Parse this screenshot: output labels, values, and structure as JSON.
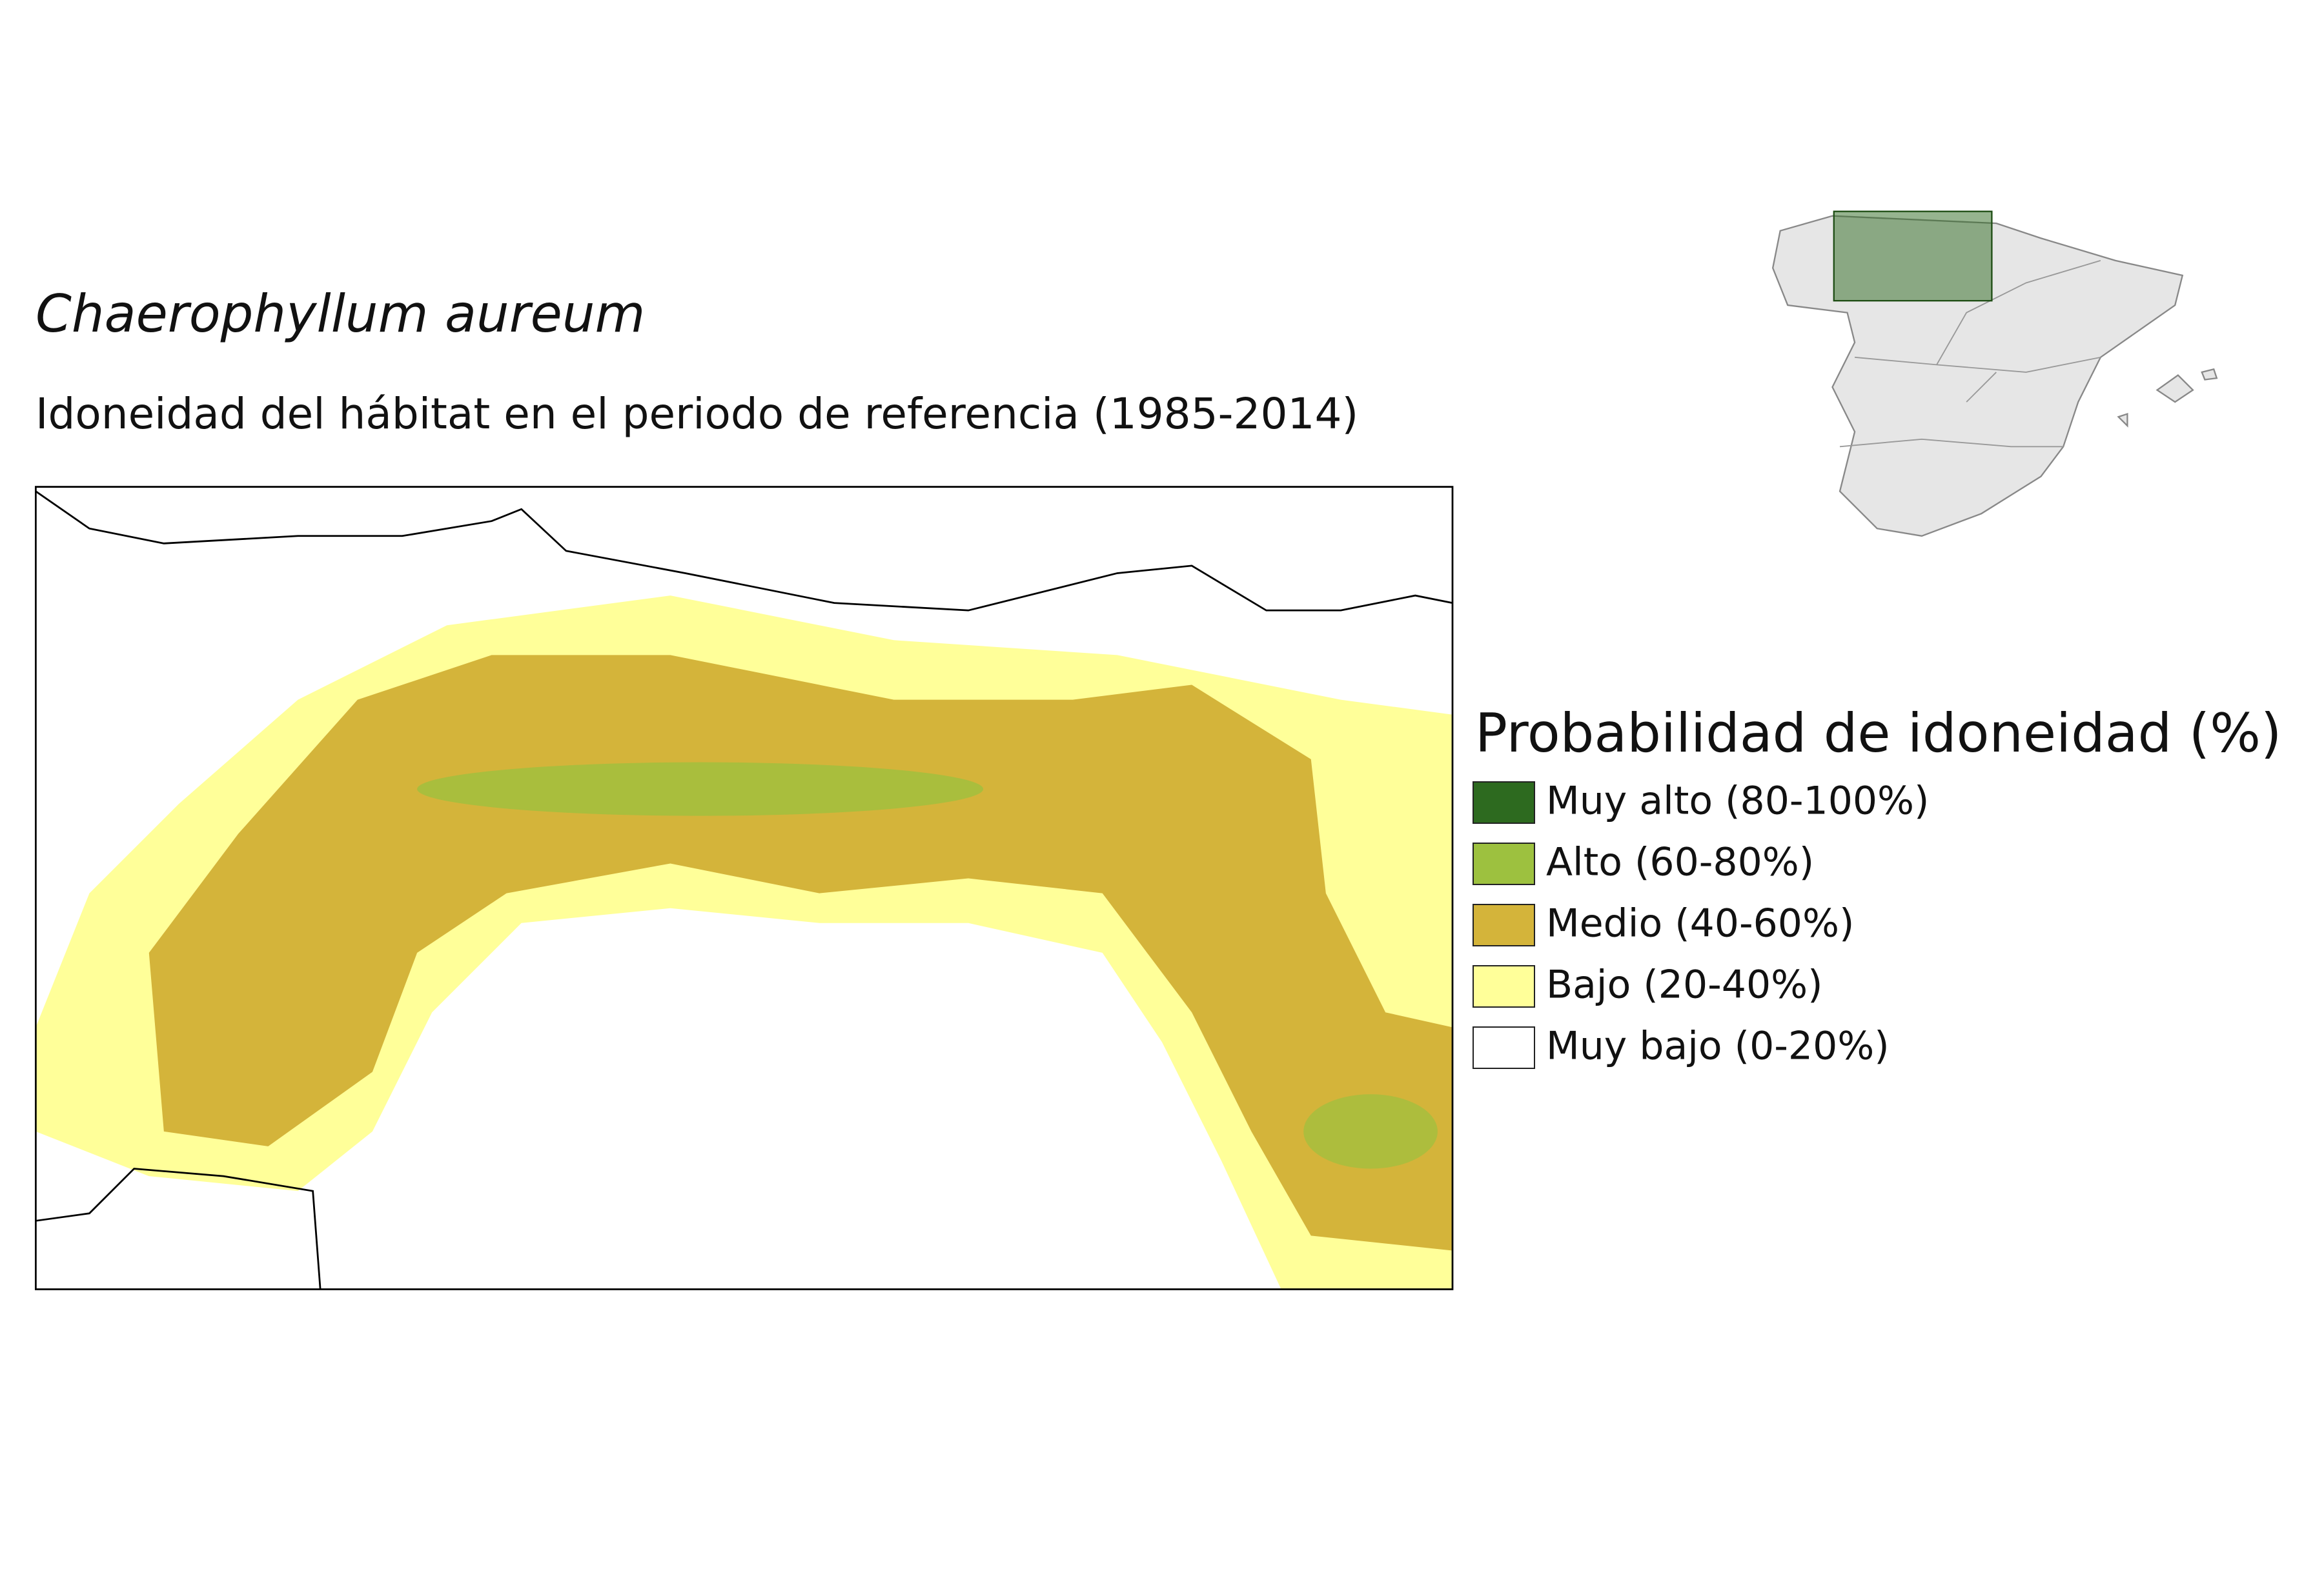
{
  "title": "Chaerophyllum aureum",
  "subtitle": "Idoneidad del hábitat en el periodo de referencia (1985-2014)",
  "legend": {
    "title": "Probabilidad de idoneidad (%)",
    "items": [
      {
        "label": "Muy alto (80-100%)",
        "color": "#2d6a1f"
      },
      {
        "label": "Alto (60-80%)",
        "color": "#9dc13f"
      },
      {
        "label": "Medio (40-60%)",
        "color": "#d4b43a"
      },
      {
        "label": "Bajo (20-40%)",
        "color": "#ffff99"
      },
      {
        "label": "Muy bajo (0-20%)",
        "color": "#ffffff"
      }
    ]
  }
}
